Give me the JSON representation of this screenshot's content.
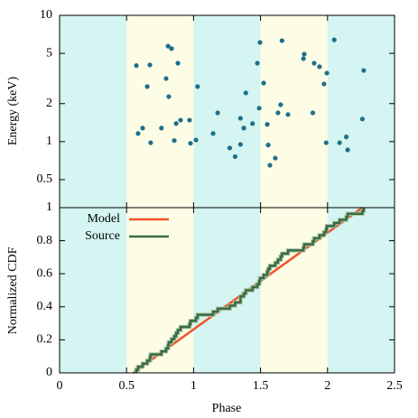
{
  "chart_data": [
    {
      "type": "scatter",
      "ylabel": "Energy (keV)",
      "ylog": true,
      "color": "#1f6f8b",
      "xlim": [
        0,
        2.5
      ],
      "ylim": [
        0.3,
        10
      ],
      "yticks": [
        0.5,
        1,
        2,
        5,
        10
      ],
      "bands": [
        {
          "from": 0,
          "to": 0.5,
          "color": "#d4f5f1"
        },
        {
          "from": 0.5,
          "to": 1,
          "color": "#fdfde6"
        },
        {
          "from": 1,
          "to": 1.5,
          "color": "#d4f5f1"
        },
        {
          "from": 1.5,
          "to": 2,
          "color": "#fdfde6"
        },
        {
          "from": 2,
          "to": 2.5,
          "color": "#d4f5f1"
        }
      ],
      "x": [
        0.573,
        0.586,
        0.62,
        0.654,
        0.674,
        0.68,
        0.76,
        0.795,
        0.81,
        0.836,
        0.815,
        0.856,
        0.87,
        0.883,
        0.903,
        0.97,
        0.977,
        1.018,
        1.03,
        1.146,
        1.18,
        1.27,
        1.31,
        1.35,
        1.35,
        1.375,
        1.39,
        1.44,
        1.476,
        1.496,
        1.49,
        1.523,
        1.55,
        1.557,
        1.57,
        1.61,
        1.63,
        1.65,
        1.66,
        1.705,
        1.826,
        1.82,
        1.89,
        1.9,
        1.94,
        1.974,
        1.995,
        1.99,
        2.05,
        2.09,
        2.14,
        2.15,
        2.26,
        2.27
      ],
      "values": [
        4.0,
        1.16,
        1.28,
        2.73,
        4.05,
        0.98,
        1.28,
        3.16,
        5.7,
        5.45,
        2.27,
        1.02,
        1.39,
        4.18,
        1.48,
        1.48,
        0.97,
        1.03,
        2.73,
        1.16,
        1.69,
        0.89,
        0.76,
        0.95,
        1.53,
        1.28,
        2.43,
        1.39,
        4.18,
        6.1,
        1.84,
        2.91,
        1.37,
        0.94,
        0.65,
        0.74,
        1.69,
        1.96,
        6.3,
        1.64,
        4.93,
        4.54,
        1.69,
        4.18,
        3.92,
        2.86,
        3.49,
        0.98,
        6.4,
        0.98,
        1.09,
        0.86,
        1.51,
        3.66
      ]
    },
    {
      "type": "line",
      "ylabel": "Normalized CDF",
      "xlabel": "Phase",
      "legend": "upper left",
      "xlim": [
        0,
        2.5
      ],
      "xticks": [
        0,
        0.5,
        1,
        1.5,
        2,
        2.5
      ],
      "ylim": [
        0,
        1
      ],
      "yticks": [
        0,
        0.2,
        0.4,
        0.6,
        0.8,
        1
      ],
      "series": [
        {
          "name": "Model",
          "color": "#f0522a",
          "x": [
            0.55,
            2.26
          ],
          "values": [
            0,
            1
          ]
        },
        {
          "name": "Source",
          "color": "#3c6a46",
          "step": true,
          "x": [
            0.573,
            0.586,
            0.62,
            0.654,
            0.674,
            0.68,
            0.76,
            0.795,
            0.81,
            0.815,
            0.836,
            0.856,
            0.87,
            0.883,
            0.903,
            0.97,
            0.977,
            1.018,
            1.03,
            1.146,
            1.18,
            1.27,
            1.31,
            1.35,
            1.35,
            1.375,
            1.39,
            1.44,
            1.476,
            1.49,
            1.496,
            1.523,
            1.55,
            1.557,
            1.57,
            1.61,
            1.63,
            1.65,
            1.66,
            1.705,
            1.82,
            1.826,
            1.89,
            1.9,
            1.94,
            1.974,
            1.99,
            1.995,
            2.05,
            2.09,
            2.14,
            2.15,
            2.26,
            2.27
          ],
          "values": [
            0.019,
            0.037,
            0.056,
            0.074,
            0.093,
            0.111,
            0.13,
            0.148,
            0.167,
            0.185,
            0.204,
            0.222,
            0.241,
            0.259,
            0.278,
            0.296,
            0.315,
            0.333,
            0.352,
            0.37,
            0.389,
            0.407,
            0.426,
            0.444,
            0.463,
            0.481,
            0.5,
            0.519,
            0.537,
            0.556,
            0.574,
            0.593,
            0.611,
            0.63,
            0.648,
            0.667,
            0.685,
            0.704,
            0.722,
            0.741,
            0.759,
            0.778,
            0.796,
            0.815,
            0.833,
            0.852,
            0.87,
            0.889,
            0.907,
            0.926,
            0.944,
            0.963,
            0.981,
            1
          ]
        }
      ]
    }
  ]
}
